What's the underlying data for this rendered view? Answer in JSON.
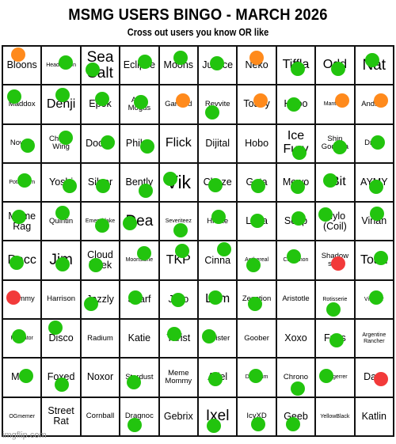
{
  "header": {
    "title": "MSMG USERS BINGO - MARCH 2026",
    "subtitle": "Cross out users you know OR like"
  },
  "watermark": "imgflip.com",
  "colors": {
    "green": "#22c40e",
    "orange": "#ff8a1c",
    "red": "#f23a3a"
  },
  "cells": [
    {
      "label": "Bloons",
      "size": "m",
      "mark": "orange",
      "dot": [
        0.4,
        0.22
      ]
    },
    {
      "label": "Headmotion",
      "size": "xs",
      "mark": "green",
      "dot": [
        0.62,
        0.42
      ]
    },
    {
      "label": "Sea Salt",
      "size": "xl",
      "mark": "green",
      "dot": [
        0.3,
        0.62
      ]
    },
    {
      "label": "Eclipse",
      "size": "m",
      "mark": "green",
      "dot": [
        0.65,
        0.4
      ]
    },
    {
      "label": "Moons",
      "size": "m",
      "mark": "green",
      "dot": [
        0.55,
        0.3
      ]
    },
    {
      "label": "Justice",
      "size": "m",
      "mark": "green",
      "dot": [
        0.48,
        0.45
      ]
    },
    {
      "label": "Neko",
      "size": "m",
      "mark": "orange",
      "dot": [
        0.5,
        0.3
      ]
    },
    {
      "label": "Tiffla",
      "size": "l",
      "mark": "green",
      "dot": [
        0.55,
        0.6
      ]
    },
    {
      "label": "Odd",
      "size": "l",
      "mark": "green",
      "dot": [
        0.58,
        0.6
      ]
    },
    {
      "label": "Nat",
      "size": "xl",
      "mark": "green",
      "dot": [
        0.45,
        0.36
      ]
    },
    {
      "label": "Maddox",
      "size": "s",
      "mark": "green",
      "dot": [
        0.3,
        0.28
      ]
    },
    {
      "label": "Denji",
      "size": "l",
      "mark": "green",
      "dot": [
        0.55,
        0.25
      ]
    },
    {
      "label": "Epok",
      "size": "m",
      "mark": "green",
      "dot": [
        0.55,
        0.36
      ]
    },
    {
      "label": "Arab Mogus",
      "size": "s",
      "mark": "green",
      "dot": [
        0.55,
        0.44
      ]
    },
    {
      "label": "Garmod",
      "size": "s",
      "mark": "orange",
      "dot": [
        0.62,
        0.4
      ]
    },
    {
      "label": "Revvite",
      "size": "s",
      "mark": "green",
      "dot": [
        0.35,
        0.72
      ]
    },
    {
      "label": "Toaey",
      "size": "m",
      "mark": "orange",
      "dot": [
        0.6,
        0.4
      ]
    },
    {
      "label": "Hiroo",
      "size": "m",
      "mark": "green",
      "dot": [
        0.45,
        0.5
      ]
    },
    {
      "label": "Mantisee",
      "size": "xs",
      "mark": "orange",
      "dot": [
        0.7,
        0.4
      ]
    },
    {
      "label": "Andrew",
      "size": "s",
      "mark": "orange",
      "dot": [
        0.68,
        0.4
      ]
    },
    {
      "label": "Nowler",
      "size": "s",
      "mark": "green",
      "dot": [
        0.65,
        0.55
      ]
    },
    {
      "label": "Charlie Wing",
      "size": "s",
      "mark": "green",
      "dot": [
        0.62,
        0.34
      ]
    },
    {
      "label": "Doctor",
      "size": "m",
      "mark": "green",
      "dot": [
        0.7,
        0.48
      ]
    },
    {
      "label": "Philya",
      "size": "m",
      "mark": "green",
      "dot": [
        0.72,
        0.58
      ]
    },
    {
      "label": "Flick",
      "size": "l",
      "mark": "none",
      "dot": [
        0,
        0
      ]
    },
    {
      "label": "Dijital",
      "size": "m",
      "mark": "none",
      "dot": [
        0,
        0
      ]
    },
    {
      "label": "Hobo",
      "size": "m",
      "mark": "none",
      "dot": [
        0,
        0
      ]
    },
    {
      "label": "Ice Fury",
      "size": "l",
      "mark": "green",
      "dot": [
        0.6,
        0.74
      ]
    },
    {
      "label": "Shin Godzilla",
      "size": "s",
      "mark": "green",
      "dot": [
        0.62,
        0.6
      ]
    },
    {
      "label": "Dryzy",
      "size": "s",
      "mark": "green",
      "dot": [
        0.6,
        0.47
      ]
    },
    {
      "label": "Potassium",
      "size": "xs",
      "mark": "green",
      "dot": [
        0.58,
        0.44
      ]
    },
    {
      "label": "Yoshi",
      "size": "m",
      "mark": "green",
      "dot": [
        0.72,
        0.6
      ]
    },
    {
      "label": "Silver",
      "size": "m",
      "mark": "green",
      "dot": [
        0.58,
        0.6
      ]
    },
    {
      "label": "Bently",
      "size": "m",
      "mark": "green",
      "dot": [
        0.68,
        0.72
      ]
    },
    {
      "label": "Vik",
      "size": "xxl",
      "mark": "green",
      "dot": [
        0.28,
        0.4
      ]
    },
    {
      "label": "Cheze",
      "size": "m",
      "mark": "green",
      "dot": [
        0.45,
        0.58
      ]
    },
    {
      "label": "Gata",
      "size": "m",
      "mark": "green",
      "dot": [
        0.55,
        0.6
      ]
    },
    {
      "label": "Mewo",
      "size": "m",
      "mark": "green",
      "dot": [
        0.55,
        0.62
      ]
    },
    {
      "label": "3Bit",
      "size": "l",
      "mark": "green",
      "dot": [
        0.38,
        0.44
      ]
    },
    {
      "label": "AYMY",
      "size": "m",
      "mark": "green",
      "dot": [
        0.55,
        0.62
      ]
    },
    {
      "label": "Meme Rag",
      "size": "m",
      "mark": "green",
      "dot": [
        0.42,
        0.38
      ]
    },
    {
      "label": "Quintin",
      "size": "s",
      "mark": "green",
      "dot": [
        0.55,
        0.28
      ]
    },
    {
      "label": "Emeraldake",
      "size": "xs",
      "mark": "green",
      "dot": [
        0.55,
        0.6
      ]
    },
    {
      "label": "Dea",
      "size": "xl",
      "mark": "green",
      "dot": [
        0.25,
        0.55
      ]
    },
    {
      "label": "Severiteez",
      "size": "xs",
      "mark": "green",
      "dot": [
        0.55,
        0.74
      ]
    },
    {
      "label": "Hicate",
      "size": "s",
      "mark": "green",
      "dot": [
        0.52,
        0.38
      ]
    },
    {
      "label": "Libra",
      "size": "m",
      "mark": "green",
      "dot": [
        0.52,
        0.48
      ]
    },
    {
      "label": "Soap",
      "size": "m",
      "mark": "green",
      "dot": [
        0.58,
        0.42
      ]
    },
    {
      "label": "Mylo (Coil)",
      "size": "m",
      "mark": "green",
      "dot": [
        0.25,
        0.32
      ]
    },
    {
      "label": "Virian",
      "size": "m",
      "mark": "green",
      "dot": [
        0.58,
        0.3
      ]
    },
    {
      "label": "Dacc",
      "size": "l",
      "mark": "green",
      "dot": [
        0.35,
        0.55
      ]
    },
    {
      "label": "Jim",
      "size": "xl",
      "mark": "green",
      "dot": [
        0.55,
        0.6
      ]
    },
    {
      "label": "Cloud Neek",
      "size": "m",
      "mark": "green",
      "dot": [
        0.38,
        0.62
      ]
    },
    {
      "label": "Moonstone",
      "size": "xs",
      "mark": "green",
      "dot": [
        0.62,
        0.3
      ]
    },
    {
      "label": "TKP",
      "size": "l",
      "mark": "green",
      "dot": [
        0.6,
        0.25
      ]
    },
    {
      "label": "Cinna",
      "size": "m",
      "mark": "green",
      "dot": [
        0.68,
        0.2
      ]
    },
    {
      "label": "Aethereal",
      "size": "xs",
      "mark": "green",
      "dot": [
        0.42,
        0.62
      ]
    },
    {
      "label": "Cinnamon",
      "size": "xs",
      "mark": "green",
      "dot": [
        0.45,
        0.4
      ]
    },
    {
      "label": "Shadow seal",
      "size": "s",
      "mark": "red",
      "dot": [
        0.58,
        0.58
      ]
    },
    {
      "label": "Toad",
      "size": "l",
      "mark": "green",
      "dot": [
        0.68,
        0.44
      ]
    },
    {
      "label": "Sammy",
      "size": "s",
      "mark": "red",
      "dot": [
        0.28,
        0.44
      ]
    },
    {
      "label": "Harrison",
      "size": "s",
      "mark": "none",
      "dot": [
        0,
        0
      ]
    },
    {
      "label": "Jazzly",
      "size": "m",
      "mark": "green",
      "dot": [
        0.25,
        0.62
      ]
    },
    {
      "label": "Scarf",
      "size": "m",
      "mark": "green",
      "dot": [
        0.4,
        0.45
      ]
    },
    {
      "label": "Jello",
      "size": "m",
      "mark": "green",
      "dot": [
        0.5,
        0.52
      ]
    },
    {
      "label": "Lam",
      "size": "l",
      "mark": "green",
      "dot": [
        0.45,
        0.44
      ]
    },
    {
      "label": "Zenction",
      "size": "s",
      "mark": "green",
      "dot": [
        0.45,
        0.62
      ]
    },
    {
      "label": "Aristotle",
      "size": "s",
      "mark": "none",
      "dot": [
        0,
        0
      ]
    },
    {
      "label": "Rotisserie",
      "size": "xs",
      "mark": "green",
      "dot": [
        0.45,
        0.76
      ]
    },
    {
      "label": "Vitalizer",
      "size": "xs",
      "mark": "green",
      "dot": [
        0.55,
        0.45
      ]
    },
    {
      "label": "Ratinator",
      "size": "xs",
      "mark": "green",
      "dot": [
        0.42,
        0.44
      ]
    },
    {
      "label": "Disco",
      "size": "m",
      "mark": "green",
      "dot": [
        0.35,
        0.22
      ]
    },
    {
      "label": "Radium",
      "size": "s",
      "mark": "none",
      "dot": [
        0,
        0
      ]
    },
    {
      "label": "Katie",
      "size": "m",
      "mark": "none",
      "dot": [
        0,
        0
      ]
    },
    {
      "label": "Tarist",
      "size": "m",
      "mark": "green",
      "dot": [
        0.38,
        0.38
      ]
    },
    {
      "label": "Moister",
      "size": "s",
      "mark": "green",
      "dot": [
        0.28,
        0.44
      ]
    },
    {
      "label": "Goober",
      "size": "s",
      "mark": "none",
      "dot": [
        0,
        0
      ]
    },
    {
      "label": "Xoxo",
      "size": "m",
      "mark": "none",
      "dot": [
        0,
        0
      ]
    },
    {
      "label": "Frias",
      "size": "m",
      "mark": "green",
      "dot": [
        0.55,
        0.55
      ]
    },
    {
      "label": "Argentine Rancher",
      "size": "xs",
      "mark": "none",
      "dot": [
        0,
        0
      ]
    },
    {
      "label": "Mole",
      "size": "m",
      "mark": "green",
      "dot": [
        0.62,
        0.45
      ]
    },
    {
      "label": "Foxed",
      "size": "m",
      "mark": "green",
      "dot": [
        0.52,
        0.68
      ]
    },
    {
      "label": "Noxor",
      "size": "m",
      "mark": "none",
      "dot": [
        0,
        0
      ]
    },
    {
      "label": "Stardust",
      "size": "s",
      "mark": "green",
      "dot": [
        0.35,
        0.62
      ]
    },
    {
      "label": "Meme Mommy",
      "size": "s",
      "mark": "none",
      "dot": [
        0,
        0
      ]
    },
    {
      "label": "Ariel",
      "size": "m",
      "mark": "green",
      "dot": [
        0.45,
        0.55
      ]
    },
    {
      "label": "Durndum",
      "size": "xs",
      "mark": "green",
      "dot": [
        0.48,
        0.45
      ]
    },
    {
      "label": "Chrono",
      "size": "s",
      "mark": "green",
      "dot": [
        0.55,
        0.8
      ]
    },
    {
      "label": "Rangerrer",
      "size": "xs",
      "mark": "green",
      "dot": [
        0.28,
        0.45
      ]
    },
    {
      "label": "Dark",
      "size": "m",
      "mark": "red",
      "dot": [
        0.68,
        0.55
      ]
    },
    {
      "label": "OGmemer",
      "size": "xs",
      "mark": "none",
      "dot": [
        0,
        0
      ]
    },
    {
      "label": "Street Rat",
      "size": "m",
      "mark": "none",
      "dot": [
        0,
        0
      ]
    },
    {
      "label": "Cornball",
      "size": "s",
      "mark": "none",
      "dot": [
        0,
        0
      ]
    },
    {
      "label": "Dragnoc",
      "size": "s",
      "mark": "green",
      "dot": [
        0.38,
        0.72
      ]
    },
    {
      "label": "Gebrix",
      "size": "m",
      "mark": "none",
      "dot": [
        0,
        0
      ]
    },
    {
      "label": "Ixel",
      "size": "xl",
      "mark": "green",
      "dot": [
        0.4,
        0.74
      ]
    },
    {
      "label": "IcyXD",
      "size": "s",
      "mark": "green",
      "dot": [
        0.55,
        0.7
      ]
    },
    {
      "label": "Geeb",
      "size": "m",
      "mark": "green",
      "dot": [
        0.42,
        0.7
      ]
    },
    {
      "label": "YellowBlack",
      "size": "xs",
      "mark": "none",
      "dot": [
        0,
        0
      ]
    },
    {
      "label": "Katlin",
      "size": "m",
      "mark": "none",
      "dot": [
        0,
        0
      ]
    }
  ]
}
